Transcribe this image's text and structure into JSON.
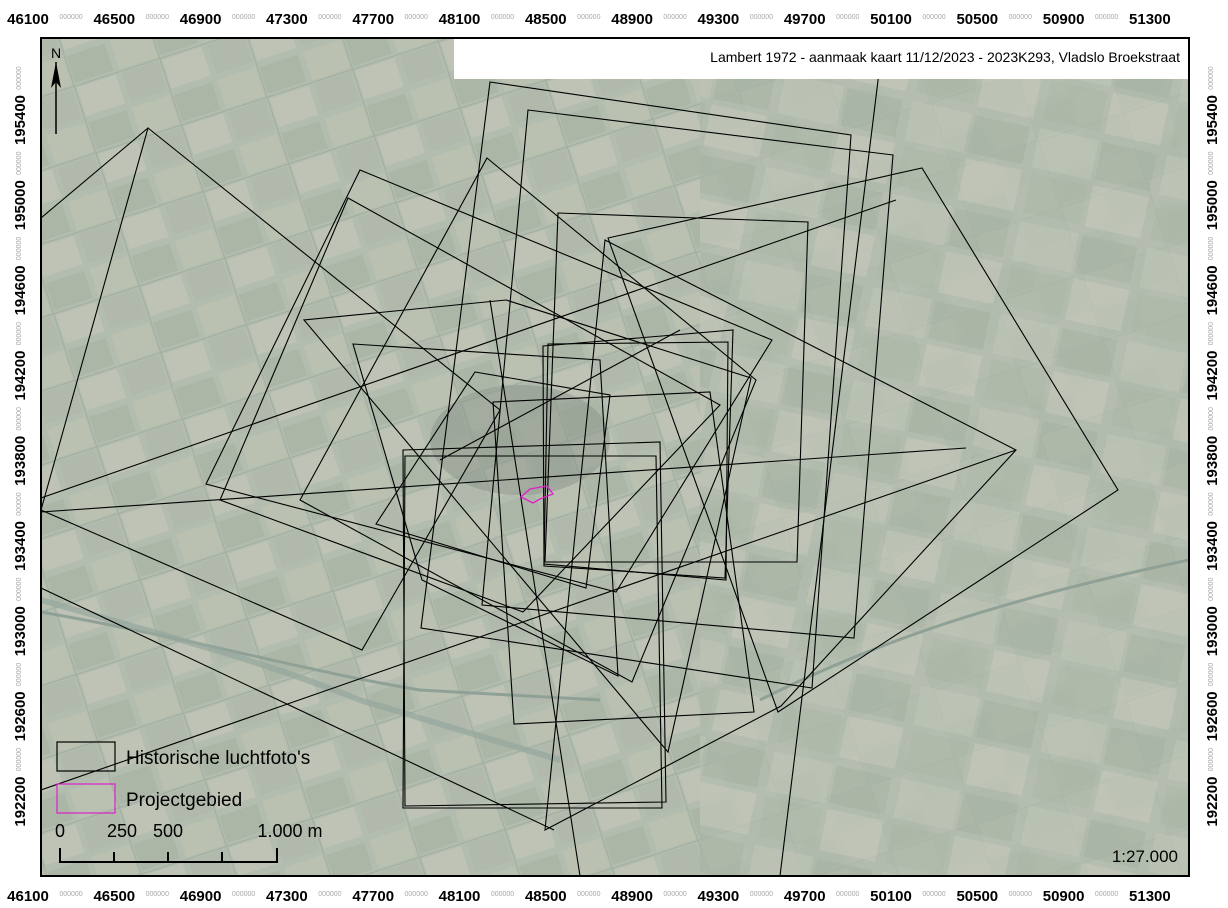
{
  "map": {
    "header": "Lambert 1972 - aanmaak kaart 11/12/2023 - 2023K293, Vladslo Broekstraat",
    "scale_text": "1:27.000",
    "north_label": "N",
    "x_ticks": [
      "46100",
      "46500",
      "46900",
      "47300",
      "47700",
      "48100",
      "48500",
      "48900",
      "49300",
      "49700",
      "50100",
      "50500",
      "50900",
      "51300"
    ],
    "y_ticks": [
      "195400",
      "195000",
      "194600",
      "194200",
      "193800",
      "193400",
      "193000",
      "192600",
      "192200"
    ],
    "tick_separator": "000000",
    "legend": {
      "items": [
        {
          "label": "Historische luchtfoto's",
          "color": "#000000"
        },
        {
          "label": "Projectgebied",
          "color": "#e01fc8"
        }
      ]
    },
    "scalebar": {
      "labels": [
        "0",
        "250",
        "500",
        "1.000 m"
      ]
    },
    "colors": {
      "imagery_base": "#a9b4a6",
      "photo_outline": "#000000",
      "project_outline": "#e01fc8"
    }
  }
}
